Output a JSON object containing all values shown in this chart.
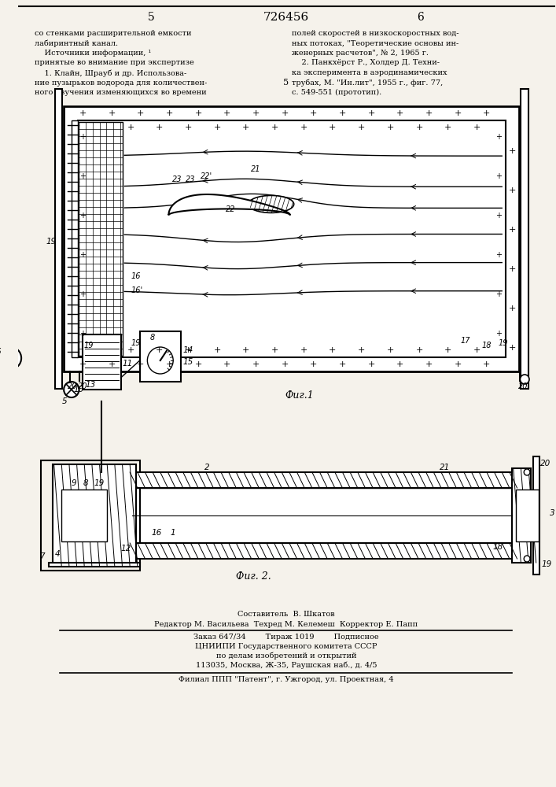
{
  "bg_color": "#f5f2eb",
  "title_text": "726456",
  "col_left_num": "5",
  "col_right_num": "6",
  "fig1_caption": "Фиг.1",
  "fig2_caption": "Фиг. 2.",
  "header_left_lines": [
    "со стенками расширительной емкости",
    "лабиринтный канал.",
    "    Источники информации, ¹",
    "принятые во внимание при экспертизе",
    "    1. Клайн, Шрауб и др. Использова-",
    "ние пузырьков водорода для количествен-",
    "ного изучения изменяющихся во времени"
  ],
  "header_right_lines": [
    "полей скоростей в низкоскоростных вод-",
    "ных потоках, \"Теоретические основы ин-",
    "женерных расчетов\", № 2, 1965 г.",
    "    2. Панкхёрст Р., Холдер Д. Техни-",
    "ка эксперимента в аэродинамических",
    "трубах, М. \"Ин.лит\", 1955 г., фиг. 77,",
    "с. 549-551 (прототип)."
  ],
  "footer_lines": [
    "Составитель  В. Шкатов",
    "Редактор М. Васильева  Техред М. Келемеш  Корректор Е. Папп",
    "Заказ 647/34        Тираж 1019        Подписное",
    "ЦНИИПИ Государственного комитета СССР",
    "по делам изобретений и открытий",
    "113035, Москва, Ж-35, Раушская наб., д. 4/5",
    "Филиал ППП \"Патент\", г. Ужгород, ул. Проектная, 4"
  ]
}
